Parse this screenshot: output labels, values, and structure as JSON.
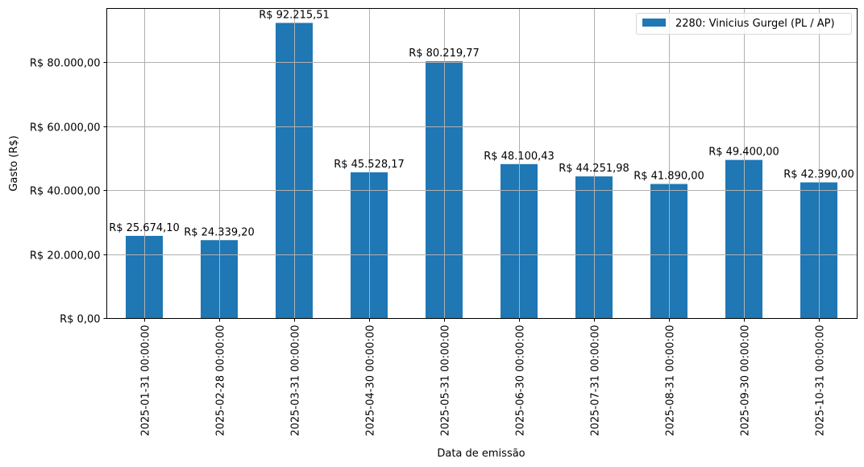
{
  "chart_data": {
    "type": "bar",
    "title": "",
    "xlabel": "Data de emissão",
    "ylabel": "Gasto (R$)",
    "ylim": [
      0,
      96800
    ],
    "grid": true,
    "legend_position": "upper right",
    "categories": [
      "2025-01-31 00:00:00",
      "2025-02-28 00:00:00",
      "2025-03-31 00:00:00",
      "2025-04-30 00:00:00",
      "2025-05-31 00:00:00",
      "2025-06-30 00:00:00",
      "2025-07-31 00:00:00",
      "2025-08-31 00:00:00",
      "2025-09-30 00:00:00",
      "2025-10-31 00:00:00"
    ],
    "series": [
      {
        "name": "2280: Vinicius Gurgel (PL / AP)",
        "color": "#1f77b4",
        "values": [
          25674.1,
          24339.2,
          92215.51,
          45528.17,
          80219.77,
          48100.43,
          44251.98,
          41890.0,
          49400.0,
          42390.0
        ],
        "labels": [
          "R$ 25.674,10",
          "R$ 24.339,20",
          "R$ 92.215,51",
          "R$ 45.528,17",
          "R$ 80.219,77",
          "R$ 48.100,43",
          "R$ 44.251,98",
          "R$ 41.890,00",
          "R$ 49.400,00",
          "R$ 42.390,00"
        ]
      }
    ],
    "yticks": [
      0,
      20000,
      40000,
      60000,
      80000
    ],
    "ytick_labels": [
      "R$ 0,00",
      "R$ 20.000,00",
      "R$ 40.000,00",
      "R$ 60.000,00",
      "R$ 80.000,00"
    ]
  },
  "colors": {
    "bar": "#1f77b4",
    "grid": "#b0b0b0",
    "axes": "#000000",
    "background": "#ffffff"
  }
}
